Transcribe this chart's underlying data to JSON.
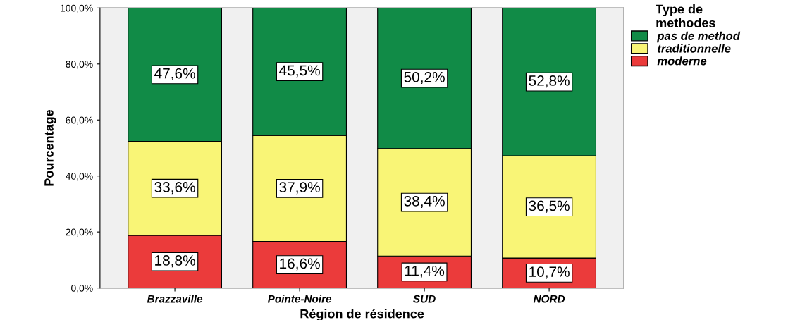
{
  "chart_data": {
    "type": "bar",
    "stacked": true,
    "xlabel": "Région de résidence",
    "ylabel": "Pourcentage",
    "legend_title": "Type de\nmethodes",
    "legend": "top right",
    "categories": [
      "Brazzaville",
      "Pointe-Noire",
      "SUD",
      "NORD"
    ],
    "series": [
      {
        "name": "moderne",
        "color": "#eb3b3b",
        "values": [
          18.8,
          16.6,
          11.4,
          10.7
        ],
        "value_labels": [
          "18,8%",
          "16,6%",
          "11,4%",
          "10,7%"
        ]
      },
      {
        "name": "traditionnelle",
        "color": "#f9f576",
        "values": [
          33.6,
          37.9,
          38.4,
          36.5
        ],
        "value_labels": [
          "33,6%",
          "37,9%",
          "38,4%",
          "36,5%"
        ]
      },
      {
        "name": "pas de method",
        "color": "#118b47",
        "values": [
          47.6,
          45.5,
          50.2,
          52.8
        ],
        "value_labels": [
          "47,6%",
          "45,5%",
          "50,2%",
          "52,8%"
        ]
      }
    ],
    "ylim": [
      0,
      100
    ],
    "yticks": [
      {
        "value": 0,
        "label": "0,0%"
      },
      {
        "value": 20,
        "label": "20,0%"
      },
      {
        "value": 40,
        "label": "40,0%"
      },
      {
        "value": 60,
        "label": "60,0%"
      },
      {
        "value": 80,
        "label": "80,0%"
      },
      {
        "value": 100,
        "label": "100,0%"
      }
    ],
    "grid": false
  }
}
